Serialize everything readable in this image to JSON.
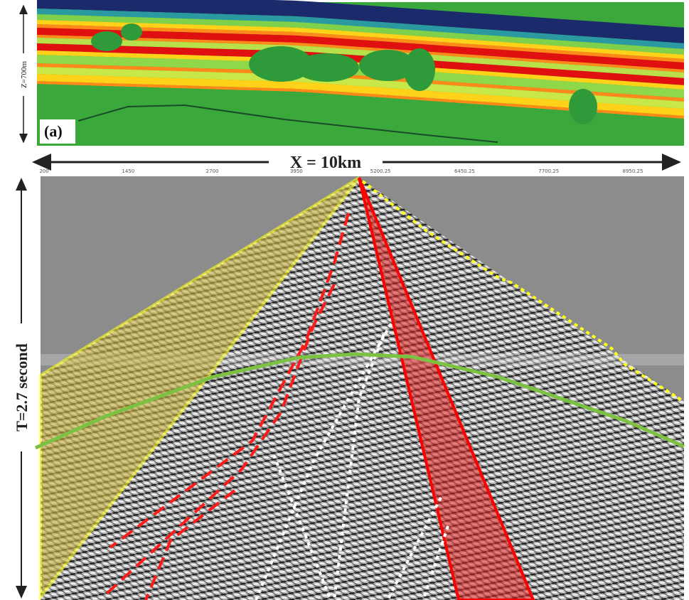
{
  "panel_a": {
    "label": "(a)",
    "depth_label": "Z=700m"
  },
  "offset_label": "X = 10km",
  "offset_ticks": [
    "200",
    "1450",
    "2700",
    "3950",
    "5200.25",
    "6450.25",
    "7700.25",
    "8950.25"
  ],
  "time_label": "T=2.7 second"
}
